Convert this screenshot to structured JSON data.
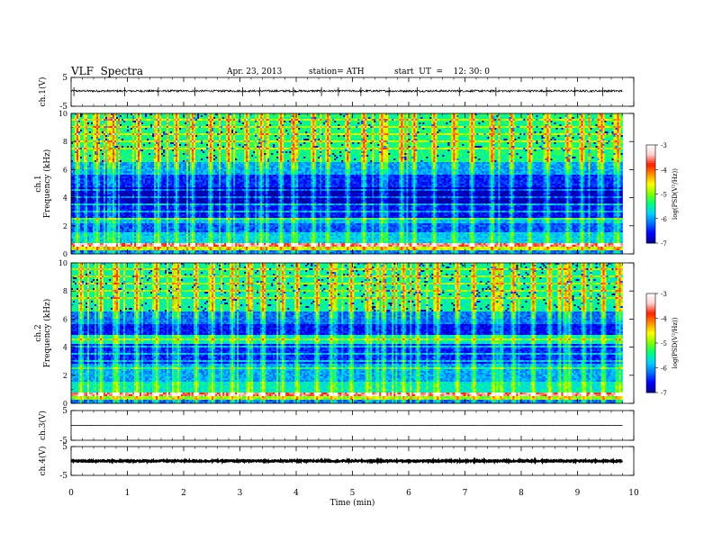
{
  "header": {
    "title": "VLF  Spectra",
    "date": "Apr. 23, 2013",
    "station": "station= ATH",
    "start": "start  UT  =    12: 30: 0"
  },
  "chart_data": [
    {
      "type": "line",
      "name": "ch1-waveform",
      "ylabel": "ch.1(V)",
      "yticks": [
        "5",
        "-5"
      ],
      "ylim": [
        -5,
        5
      ],
      "baseline": 0.3,
      "noise_amplitude": 0.35,
      "spike_times_min": [
        0.05,
        0.95,
        1.55,
        2.2,
        3.05,
        3.35,
        3.95,
        4.45,
        4.75,
        5.15,
        5.65,
        6.15,
        6.9,
        7.55,
        8.45,
        8.95,
        9.45
      ]
    },
    {
      "type": "heatmap",
      "name": "ch1-spectrogram",
      "ylabel": "ch.1\nFrequency  (kHz)",
      "yticks": [
        "0",
        "2",
        "4",
        "6",
        "8",
        "10"
      ],
      "ylim": [
        0,
        10
      ],
      "xlim": [
        0,
        9.8
      ],
      "colorbar": {
        "label": "log(PSD(V²/Hz))",
        "ticks": [
          "-3",
          "-4",
          "-5",
          "-6",
          "-7"
        ],
        "range": [
          -7,
          -3
        ],
        "colors": [
          "#000090",
          "#0000ff",
          "#0070ff",
          "#00d0ff",
          "#00ff80",
          "#80ff00",
          "#ffff00",
          "#ff9000",
          "#ff2000",
          "#ffd0d0",
          "#ffffff"
        ]
      },
      "bands": [
        {
          "f0": 0.0,
          "f1": 0.3,
          "level": -6.2
        },
        {
          "f0": 0.3,
          "f1": 0.55,
          "level": -4.8
        },
        {
          "f0": 0.55,
          "f1": 0.75,
          "level": -3.6
        },
        {
          "f0": 0.75,
          "f1": 1.6,
          "level": -5.8
        },
        {
          "f0": 1.6,
          "f1": 2.2,
          "level": -6.3
        },
        {
          "f0": 2.2,
          "f1": 2.6,
          "level": -5.9
        },
        {
          "f0": 2.6,
          "f1": 3.6,
          "level": -6.6
        },
        {
          "f0": 3.6,
          "f1": 4.8,
          "level": -6.9
        },
        {
          "f0": 4.8,
          "f1": 5.7,
          "level": -6.5
        },
        {
          "f0": 5.7,
          "f1": 6.5,
          "level": -6.0
        },
        {
          "f0": 6.5,
          "f1": 10.0,
          "level": -5.4
        }
      ],
      "sferic_times_min": [
        0.1,
        0.45,
        0.75,
        1.2,
        1.55,
        1.85,
        2.15,
        2.45,
        2.8,
        3.1,
        3.35,
        3.7,
        3.95,
        4.3,
        4.55,
        4.9,
        5.2,
        5.5,
        5.85,
        6.1,
        6.45,
        6.8,
        7.1,
        7.45,
        7.8,
        8.15,
        8.45,
        8.8,
        9.05,
        9.4,
        9.7
      ]
    },
    {
      "type": "heatmap",
      "name": "ch2-spectrogram",
      "ylabel": "ch.2\nFrequency  (kHz)",
      "yticks": [
        "0",
        "2",
        "4",
        "6",
        "8",
        "10"
      ],
      "ylim": [
        0,
        10
      ],
      "xlim": [
        0,
        9.8
      ],
      "colorbar": {
        "label": "log(PSD(V²/Hz))",
        "ticks": [
          "-3",
          "-4",
          "-5",
          "-6",
          "-7"
        ],
        "range": [
          -7,
          -3
        ]
      },
      "bands": [
        {
          "f0": 0.0,
          "f1": 0.3,
          "level": -6.2
        },
        {
          "f0": 0.3,
          "f1": 0.55,
          "level": -5.0
        },
        {
          "f0": 0.55,
          "f1": 0.75,
          "level": -3.6
        },
        {
          "f0": 0.75,
          "f1": 1.5,
          "level": -5.6
        },
        {
          "f0": 1.5,
          "f1": 2.8,
          "level": -6.0
        },
        {
          "f0": 2.8,
          "f1": 4.2,
          "level": -6.5
        },
        {
          "f0": 4.2,
          "f1": 4.9,
          "level": -5.6
        },
        {
          "f0": 4.9,
          "f1": 5.7,
          "level": -6.6
        },
        {
          "f0": 5.7,
          "f1": 6.5,
          "level": -6.2
        },
        {
          "f0": 6.5,
          "f1": 10.0,
          "level": -5.5
        }
      ],
      "sferic_times_min": [
        0.15,
        0.5,
        0.8,
        1.15,
        1.5,
        1.9,
        2.2,
        2.5,
        2.85,
        3.15,
        3.4,
        3.75,
        4.0,
        4.35,
        4.6,
        4.95,
        5.25,
        5.55,
        5.9,
        6.15,
        6.5,
        6.85,
        7.15,
        7.5,
        7.85,
        8.2,
        8.5,
        8.85,
        9.1,
        9.45,
        9.75
      ]
    },
    {
      "type": "line",
      "name": "ch3-waveform",
      "ylabel": "ch.3(V)",
      "yticks": [
        "5",
        "-5"
      ],
      "ylim": [
        -5,
        5
      ],
      "baseline": 0.0,
      "noise_amplitude": 0.05,
      "spike_times_min": []
    },
    {
      "type": "line",
      "name": "ch4-waveform",
      "ylabel": "ch.4(V)",
      "yticks": [
        "5",
        "-5"
      ],
      "ylim": [
        -5,
        5
      ],
      "baseline": 0.0,
      "noise_amplitude": 0.25,
      "spike_times_min": []
    }
  ],
  "xaxis": {
    "label": "Time  (min)",
    "ticks": [
      "0",
      "1",
      "2",
      "3",
      "4",
      "5",
      "6",
      "7",
      "8",
      "9",
      "10"
    ],
    "xlim": [
      0,
      10
    ],
    "data_end_min": 9.8
  }
}
